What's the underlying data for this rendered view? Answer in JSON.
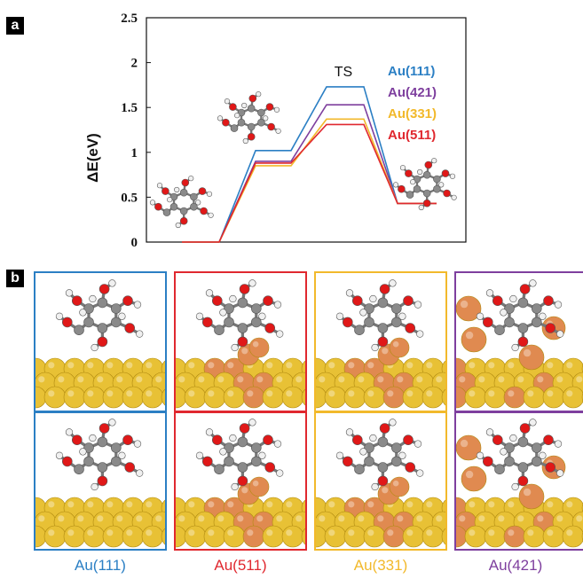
{
  "panel_a_tag": "a",
  "panel_b_tag": "b",
  "colors": {
    "au111": "#2b7fc4",
    "au421": "#7e3f9e",
    "au331": "#f2b92b",
    "au511": "#e0282f",
    "gold": "#e8c135",
    "copper": "#e08a50",
    "oxygen": "#e01818",
    "carbon": "#8a8a8a",
    "hydrogen": "#f0f0f0"
  },
  "chart_data": {
    "type": "line",
    "title": "",
    "xlabel": "",
    "ylabel": "ΔE(eV)",
    "ylim": [
      0,
      2.5
    ],
    "yticks": [
      "0",
      "0.5",
      "1",
      "1.5",
      "2",
      "2.5"
    ],
    "grid": false,
    "legend_position": "top-right",
    "annotation": "TS",
    "series": [
      {
        "name": "Au(111)",
        "color": "#2b7fc4",
        "x": [
          0,
          1,
          2,
          3,
          4,
          5,
          6,
          7,
          8,
          9
        ],
        "y": [
          0,
          0,
          1.02,
          1.02,
          1.73,
          1.73,
          0.43,
          0.43,
          null,
          null
        ]
      },
      {
        "name": "Au(421)",
        "color": "#7e3f9e",
        "x": [
          0,
          1,
          2,
          3,
          4,
          5,
          6,
          7,
          8,
          9
        ],
        "y": [
          0,
          0,
          0.9,
          0.9,
          1.53,
          1.53,
          0.43,
          0.43,
          null,
          null
        ]
      },
      {
        "name": "Au(331)",
        "color": "#f2b92b",
        "x": [
          0,
          1,
          2,
          3,
          4,
          5,
          6,
          7,
          8,
          9
        ],
        "y": [
          0,
          0,
          0.85,
          0.85,
          1.37,
          1.37,
          0.43,
          0.43,
          null,
          null
        ]
      },
      {
        "name": "Au(511)",
        "color": "#e0282f",
        "x": [
          0,
          1,
          2,
          3,
          4,
          5,
          6,
          7,
          8,
          9
        ],
        "y": [
          0,
          0,
          0.88,
          0.88,
          1.31,
          1.31,
          0.43,
          0.43,
          null,
          null
        ]
      }
    ]
  },
  "surface_labels": [
    "Au(111)",
    "Au(511)",
    "Au(331)",
    "Au(421)"
  ]
}
